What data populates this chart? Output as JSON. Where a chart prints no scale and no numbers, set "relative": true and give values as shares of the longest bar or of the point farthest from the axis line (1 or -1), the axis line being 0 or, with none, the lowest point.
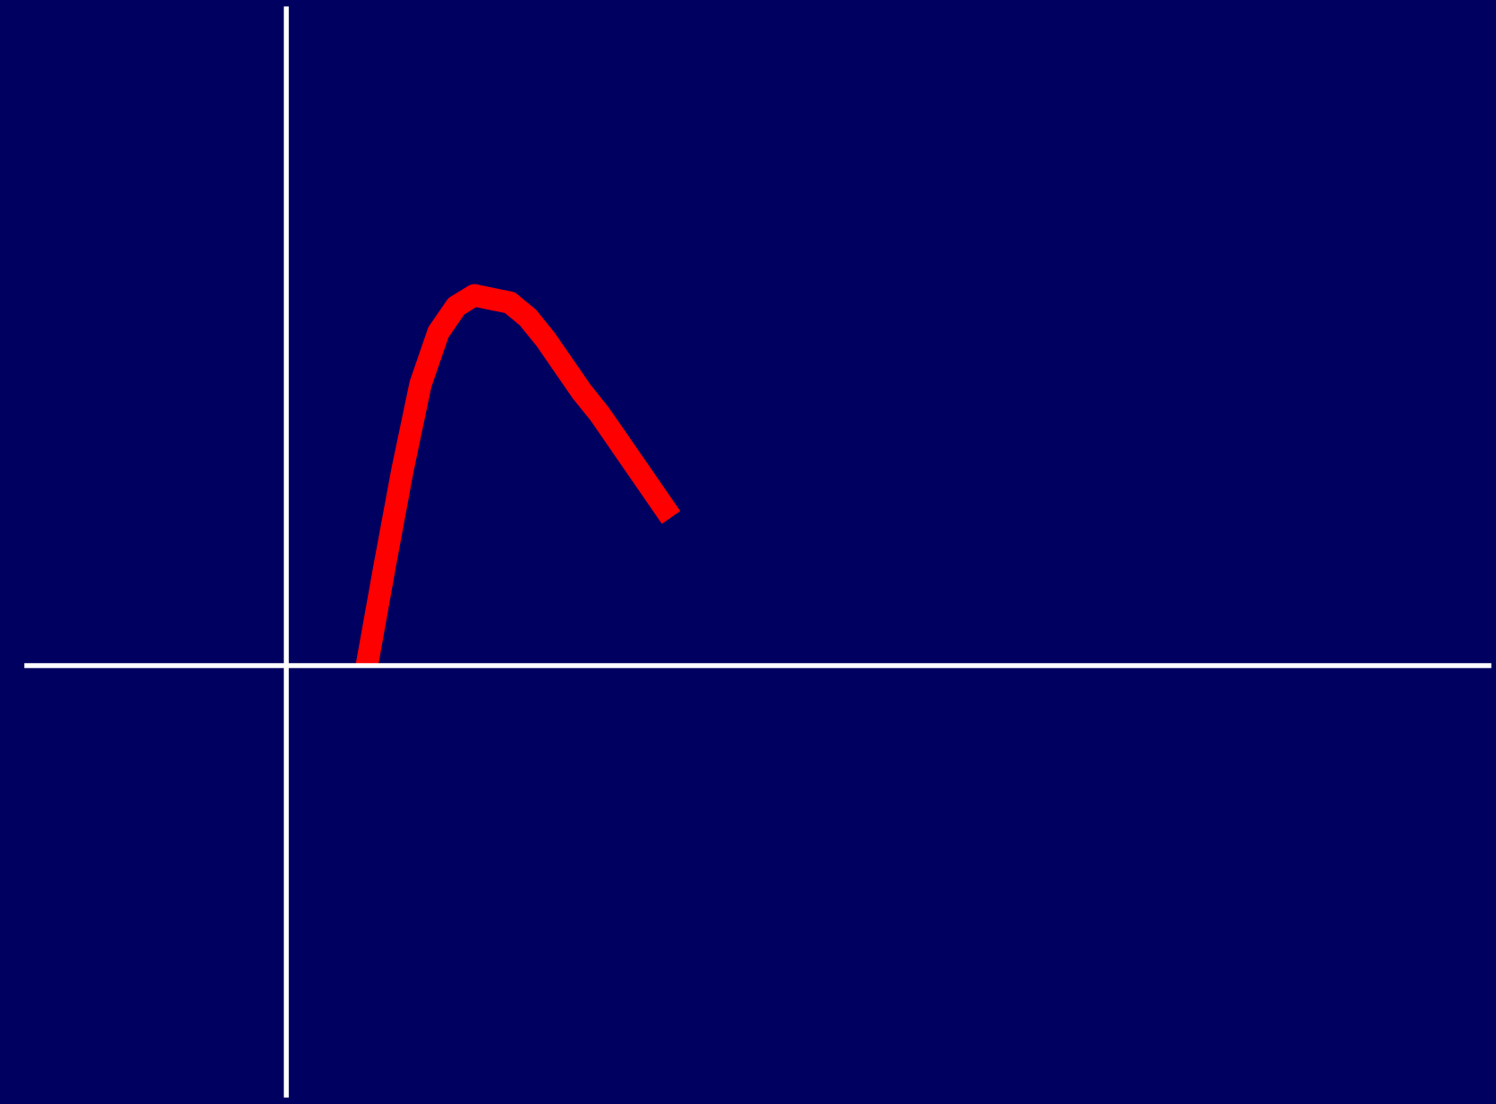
{
  "chart_data": {
    "type": "line",
    "relative": true,
    "categories": [
      null,
      null,
      null,
      null,
      null,
      null,
      null,
      null,
      null,
      null,
      null,
      null,
      null,
      null,
      null,
      null,
      null,
      null
    ],
    "series": [
      {
        "color": "#ff0000",
        "values": [
          0,
          0.27,
          0.53,
          0.76,
          0.9,
          0.97,
          1.0,
          0.99,
          0.98,
          0.94,
          0.88,
          0.81,
          0.74,
          0.68,
          0.61,
          0.54,
          0.47,
          0.4
        ]
      }
    ],
    "marker": "none",
    "line_style": "solid"
  }
}
